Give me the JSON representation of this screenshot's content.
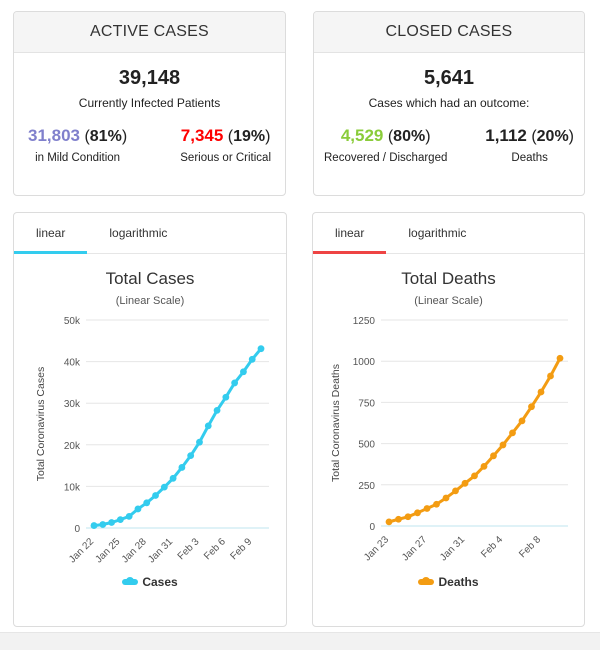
{
  "active": {
    "title": "ACTIVE CASES",
    "total": "39,148",
    "total_label": "Currently Infected Patients",
    "mild_num": "31,803",
    "mild_pct": "81%",
    "mild_label": "in Mild Condition",
    "serious_num": "7,345",
    "serious_pct": "19%",
    "serious_label": "Serious or Critical",
    "colors": {
      "mild": "#8080cc",
      "serious": "#ff0000"
    }
  },
  "closed": {
    "title": "CLOSED CASES",
    "total": "5,641",
    "total_label": "Cases which had an outcome:",
    "recovered_num": "4,529",
    "recovered_pct": "80%",
    "recovered_label": "Recovered / Discharged",
    "deaths_num": "1,112",
    "deaths_pct": "20%",
    "deaths_label": "Deaths",
    "colors": {
      "recovered": "#8acc3a",
      "deaths": "#222222"
    }
  },
  "cases_panel": {
    "tabs": [
      {
        "label": "linear"
      },
      {
        "label": "logarithmic"
      }
    ],
    "active_tab": 0
  },
  "deaths_panel": {
    "tabs": [
      {
        "label": "linear"
      },
      {
        "label": "logarithmic"
      }
    ],
    "active_tab": 0
  },
  "chart_data": [
    {
      "type": "line",
      "title": "Total Cases",
      "subtitle": "(Linear Scale)",
      "ylabel": "Total Coronavirus Cases",
      "xlabel": "",
      "ylim": [
        0,
        50000
      ],
      "yticks": [
        "0",
        "10k",
        "20k",
        "30k",
        "40k",
        "50k"
      ],
      "xtick_labels": [
        "Jan 22",
        "Jan 25",
        "Jan 28",
        "Jan 31",
        "Feb 3",
        "Feb 6",
        "Feb 9"
      ],
      "x": [
        "Jan 22",
        "Jan 23",
        "Jan 24",
        "Jan 25",
        "Jan 26",
        "Jan 27",
        "Jan 28",
        "Jan 29",
        "Jan 30",
        "Jan 31",
        "Feb 1",
        "Feb 2",
        "Feb 3",
        "Feb 4",
        "Feb 5",
        "Feb 6",
        "Feb 7",
        "Feb 8",
        "Feb 9",
        "Feb 10"
      ],
      "series": [
        {
          "name": "Cases",
          "color": "#33ccee",
          "values": [
            580,
            845,
            1317,
            2015,
            2800,
            4581,
            6058,
            7813,
            9823,
            11950,
            14553,
            17391,
            20630,
            24545,
            28276,
            31439,
            34876,
            37552,
            40553,
            43099
          ]
        }
      ],
      "grid": true,
      "legend": "bottom"
    },
    {
      "type": "line",
      "title": "Total Deaths",
      "subtitle": "(Linear Scale)",
      "ylabel": "Total Coronavirus Deaths",
      "xlabel": "",
      "ylim": [
        0,
        1250
      ],
      "yticks": [
        "0",
        "250",
        "500",
        "750",
        "1000",
        "1250"
      ],
      "xtick_labels": [
        "Jan 23",
        "Jan 27",
        "Jan 31",
        "Feb 4",
        "Feb 8"
      ],
      "x": [
        "Jan 23",
        "Jan 24",
        "Jan 25",
        "Jan 26",
        "Jan 27",
        "Jan 28",
        "Jan 29",
        "Jan 30",
        "Jan 31",
        "Feb 1",
        "Feb 2",
        "Feb 3",
        "Feb 4",
        "Feb 5",
        "Feb 6",
        "Feb 7",
        "Feb 8",
        "Feb 9",
        "Feb 10"
      ],
      "series": [
        {
          "name": "Deaths",
          "color": "#f39c12",
          "values": [
            25,
            41,
            56,
            80,
            106,
            132,
            170,
            213,
            259,
            304,
            362,
            426,
            492,
            565,
            638,
            724,
            813,
            910,
            1018
          ]
        }
      ],
      "grid": true,
      "legend": "bottom"
    }
  ]
}
